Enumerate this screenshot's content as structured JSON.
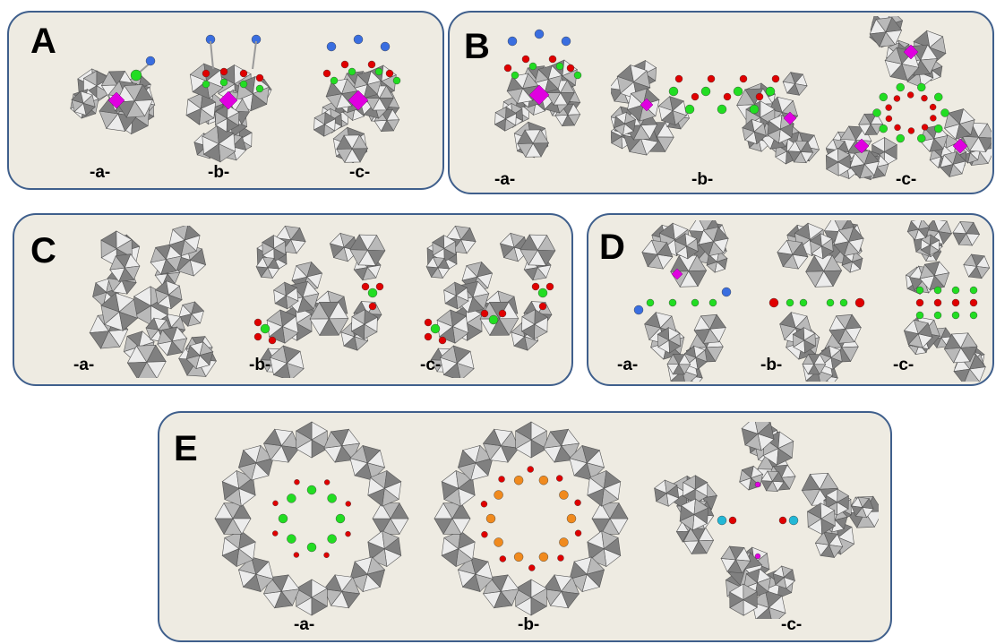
{
  "panels": [
    {
      "letter": "A",
      "labels": [
        "-a-",
        "-b-",
        "-c-"
      ]
    },
    {
      "letter": "B",
      "labels": [
        "-a-",
        "-b-",
        "-c-"
      ]
    },
    {
      "letter": "C",
      "labels": [
        "-a-",
        "-b-",
        "-c-"
      ]
    },
    {
      "letter": "D",
      "labels": [
        "-a-",
        "-b-",
        "-c-"
      ]
    },
    {
      "letter": "E",
      "labels": [
        "-a-",
        "-b-",
        "-c-"
      ]
    }
  ],
  "colors": {
    "panel_fill": "#eeebe2",
    "panel_border": "#3f5f8c",
    "polyhedron_light": "#ececec",
    "polyhedron_mid": "#b9b9b9",
    "polyhedron_dark": "#808080",
    "heteroatom": "#e000e0",
    "oxygen": "#e00000",
    "transition_metal": "#22dd22",
    "nitrogen": "#3a6ee0",
    "metal_orange": "#f08a1e",
    "metal_cyan": "#22b7d6"
  }
}
